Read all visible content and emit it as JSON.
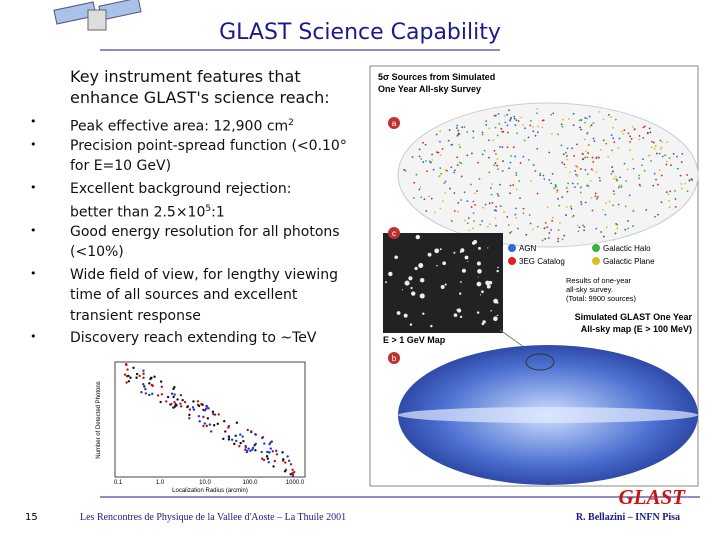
{
  "header": {
    "title": "GLAST Science Capability"
  },
  "intro": [
    "Key instrument features that",
    "enhance GLAST's science reach:"
  ],
  "bullets": [
    [
      [
        "Peak effective area: 12,900 cm",
        {
          "sup": "2"
        }
      ]
    ],
    [
      [
        "Precision point-spread function (<0.10°"
      ],
      [
        "for E=10 GeV)"
      ]
    ],
    [
      [
        "Excellent background rejection:"
      ],
      [
        "better than 2.5×10",
        {
          "sup": "5"
        },
        ":1"
      ]
    ],
    [
      [
        "Good energy resolution for all photons"
      ],
      [
        "(<10%)"
      ]
    ],
    [
      [
        "Wide field of view, for lengthy viewing"
      ],
      [
        "time of all sources and excellent"
      ],
      [
        "transient response"
      ]
    ],
    [
      [
        "Discovery reach extending to ~TeV"
      ]
    ]
  ],
  "figure": {
    "title": [
      "5σ Sources from Simulated",
      "One Year All-sky Survey"
    ],
    "panel_a": "a",
    "panel_c": "c",
    "panel_b": "b",
    "legend": [
      "AGN",
      "3EG Catalog",
      "Galactic Halo",
      "Galactic Plane"
    ],
    "results": [
      "Results of one-year",
      "all-sky survey.",
      "(Total: 9900 sources)"
    ],
    "zoom_label": "E > 1 GeV Map",
    "map_label": [
      "Simulated GLAST One Year",
      "All-sky map (E > 100 MeV)"
    ]
  },
  "plot": {
    "y_label": "Number of Detected Photons",
    "x_label": "Localization Radius (arcmin)",
    "x_ticks": [
      "0.1",
      "1.0",
      "10.0",
      "100.0",
      "1000.0"
    ]
  },
  "footer": {
    "page": "15",
    "center": "Les Rencontres de Physique de la Vallee d'Aoste – La Thuile 2001",
    "logo": "GLAST",
    "author": "R. Bellazini – INFN Pisa"
  }
}
